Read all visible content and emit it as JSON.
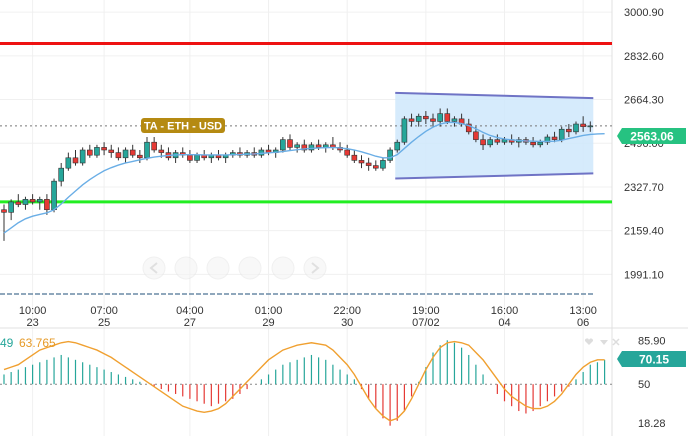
{
  "chart_data": [
    {
      "type": "candlestick",
      "title": "TA - ETH - USD",
      "y_ticks": [
        3000.9,
        2832.6,
        2664.3,
        2496.0,
        2327.7,
        2159.4,
        1991.1
      ],
      "y_tick_labels": [
        "3000.90",
        "2832.60",
        "2664.30",
        "2496.00",
        "2327.70",
        "2159.40",
        "1991.10"
      ],
      "ylim": [
        1900,
        3040
      ],
      "current_price_label": "2563.06",
      "current_price": 2563.06,
      "resistance_level": 2880,
      "support_level": 2270,
      "channel": {
        "start_index": 55,
        "end_index": 82,
        "upper": [
          2690,
          2670
        ],
        "lower": [
          2360,
          2380
        ]
      },
      "x_ticks": [
        {
          "index": 4,
          "time": "10:00",
          "date": "23"
        },
        {
          "index": 14,
          "time": "07:00",
          "date": "25"
        },
        {
          "index": 26,
          "time": "04:00",
          "date": "27"
        },
        {
          "index": 37,
          "time": "01:00",
          "date": "29"
        },
        {
          "index": 48,
          "time": "22:00",
          "date": "30"
        },
        {
          "index": 59,
          "time": "19:00",
          "date": "07/02"
        },
        {
          "index": 70,
          "time": "16:00",
          "date": "04"
        },
        {
          "index": 81,
          "time": "13:00",
          "date": "06"
        }
      ],
      "candles": [
        {
          "o": 2240,
          "h": 2260,
          "l": 2120,
          "c": 2230
        },
        {
          "o": 2230,
          "h": 2280,
          "l": 2200,
          "c": 2270
        },
        {
          "o": 2270,
          "h": 2300,
          "l": 2250,
          "c": 2260
        },
        {
          "o": 2260,
          "h": 2290,
          "l": 2240,
          "c": 2280
        },
        {
          "o": 2280,
          "h": 2300,
          "l": 2260,
          "c": 2270
        },
        {
          "o": 2270,
          "h": 2290,
          "l": 2240,
          "c": 2280
        },
        {
          "o": 2280,
          "h": 2300,
          "l": 2220,
          "c": 2240
        },
        {
          "o": 2240,
          "h": 2360,
          "l": 2230,
          "c": 2350
        },
        {
          "o": 2350,
          "h": 2420,
          "l": 2330,
          "c": 2400
        },
        {
          "o": 2400,
          "h": 2460,
          "l": 2390,
          "c": 2440
        },
        {
          "o": 2440,
          "h": 2470,
          "l": 2410,
          "c": 2420
        },
        {
          "o": 2420,
          "h": 2480,
          "l": 2410,
          "c": 2470
        },
        {
          "o": 2470,
          "h": 2490,
          "l": 2440,
          "c": 2450
        },
        {
          "o": 2450,
          "h": 2490,
          "l": 2440,
          "c": 2480
        },
        {
          "o": 2480,
          "h": 2500,
          "l": 2450,
          "c": 2470
        },
        {
          "o": 2470,
          "h": 2490,
          "l": 2440,
          "c": 2460
        },
        {
          "o": 2460,
          "h": 2480,
          "l": 2430,
          "c": 2440
        },
        {
          "o": 2440,
          "h": 2480,
          "l": 2420,
          "c": 2470
        },
        {
          "o": 2470,
          "h": 2490,
          "l": 2440,
          "c": 2450
        },
        {
          "o": 2450,
          "h": 2470,
          "l": 2420,
          "c": 2440
        },
        {
          "o": 2440,
          "h": 2520,
          "l": 2430,
          "c": 2500
        },
        {
          "o": 2500,
          "h": 2520,
          "l": 2460,
          "c": 2470
        },
        {
          "o": 2470,
          "h": 2490,
          "l": 2440,
          "c": 2460
        },
        {
          "o": 2460,
          "h": 2480,
          "l": 2430,
          "c": 2440
        },
        {
          "o": 2440,
          "h": 2470,
          "l": 2420,
          "c": 2460
        },
        {
          "o": 2460,
          "h": 2480,
          "l": 2440,
          "c": 2450
        },
        {
          "o": 2450,
          "h": 2470,
          "l": 2420,
          "c": 2430
        },
        {
          "o": 2430,
          "h": 2460,
          "l": 2420,
          "c": 2450
        },
        {
          "o": 2450,
          "h": 2470,
          "l": 2430,
          "c": 2440
        },
        {
          "o": 2440,
          "h": 2460,
          "l": 2420,
          "c": 2450
        },
        {
          "o": 2450,
          "h": 2470,
          "l": 2430,
          "c": 2440
        },
        {
          "o": 2440,
          "h": 2460,
          "l": 2420,
          "c": 2450
        },
        {
          "o": 2450,
          "h": 2470,
          "l": 2440,
          "c": 2460
        },
        {
          "o": 2460,
          "h": 2480,
          "l": 2440,
          "c": 2450
        },
        {
          "o": 2450,
          "h": 2470,
          "l": 2440,
          "c": 2460
        },
        {
          "o": 2460,
          "h": 2480,
          "l": 2440,
          "c": 2450
        },
        {
          "o": 2450,
          "h": 2480,
          "l": 2440,
          "c": 2470
        },
        {
          "o": 2470,
          "h": 2490,
          "l": 2450,
          "c": 2460
        },
        {
          "o": 2460,
          "h": 2480,
          "l": 2440,
          "c": 2470
        },
        {
          "o": 2470,
          "h": 2520,
          "l": 2460,
          "c": 2510
        },
        {
          "o": 2510,
          "h": 2530,
          "l": 2470,
          "c": 2480
        },
        {
          "o": 2480,
          "h": 2500,
          "l": 2460,
          "c": 2490
        },
        {
          "o": 2490,
          "h": 2510,
          "l": 2460,
          "c": 2470
        },
        {
          "o": 2470,
          "h": 2500,
          "l": 2460,
          "c": 2490
        },
        {
          "o": 2490,
          "h": 2510,
          "l": 2470,
          "c": 2480
        },
        {
          "o": 2480,
          "h": 2500,
          "l": 2460,
          "c": 2490
        },
        {
          "o": 2490,
          "h": 2520,
          "l": 2470,
          "c": 2480
        },
        {
          "o": 2480,
          "h": 2500,
          "l": 2460,
          "c": 2470
        },
        {
          "o": 2470,
          "h": 2490,
          "l": 2440,
          "c": 2450
        },
        {
          "o": 2450,
          "h": 2470,
          "l": 2420,
          "c": 2430
        },
        {
          "o": 2430,
          "h": 2450,
          "l": 2400,
          "c": 2420
        },
        {
          "o": 2420,
          "h": 2440,
          "l": 2390,
          "c": 2410
        },
        {
          "o": 2410,
          "h": 2430,
          "l": 2390,
          "c": 2400
        },
        {
          "o": 2400,
          "h": 2440,
          "l": 2390,
          "c": 2430
        },
        {
          "o": 2430,
          "h": 2480,
          "l": 2420,
          "c": 2470
        },
        {
          "o": 2470,
          "h": 2510,
          "l": 2460,
          "c": 2500
        },
        {
          "o": 2500,
          "h": 2600,
          "l": 2490,
          "c": 2590
        },
        {
          "o": 2590,
          "h": 2610,
          "l": 2560,
          "c": 2580
        },
        {
          "o": 2580,
          "h": 2610,
          "l": 2560,
          "c": 2600
        },
        {
          "o": 2600,
          "h": 2620,
          "l": 2570,
          "c": 2590
        },
        {
          "o": 2590,
          "h": 2610,
          "l": 2560,
          "c": 2580
        },
        {
          "o": 2580,
          "h": 2630,
          "l": 2560,
          "c": 2610
        },
        {
          "o": 2610,
          "h": 2630,
          "l": 2570,
          "c": 2580
        },
        {
          "o": 2580,
          "h": 2600,
          "l": 2560,
          "c": 2590
        },
        {
          "o": 2590,
          "h": 2610,
          "l": 2560,
          "c": 2570
        },
        {
          "o": 2570,
          "h": 2590,
          "l": 2530,
          "c": 2540
        },
        {
          "o": 2540,
          "h": 2560,
          "l": 2500,
          "c": 2510
        },
        {
          "o": 2510,
          "h": 2530,
          "l": 2470,
          "c": 2490
        },
        {
          "o": 2490,
          "h": 2520,
          "l": 2480,
          "c": 2510
        },
        {
          "o": 2510,
          "h": 2530,
          "l": 2490,
          "c": 2500
        },
        {
          "o": 2500,
          "h": 2520,
          "l": 2490,
          "c": 2510
        },
        {
          "o": 2510,
          "h": 2530,
          "l": 2490,
          "c": 2500
        },
        {
          "o": 2500,
          "h": 2520,
          "l": 2480,
          "c": 2510
        },
        {
          "o": 2510,
          "h": 2520,
          "l": 2490,
          "c": 2500
        },
        {
          "o": 2500,
          "h": 2520,
          "l": 2480,
          "c": 2490
        },
        {
          "o": 2490,
          "h": 2510,
          "l": 2480,
          "c": 2500
        },
        {
          "o": 2500,
          "h": 2530,
          "l": 2490,
          "c": 2520
        },
        {
          "o": 2520,
          "h": 2540,
          "l": 2500,
          "c": 2510
        },
        {
          "o": 2510,
          "h": 2560,
          "l": 2500,
          "c": 2550
        },
        {
          "o": 2550,
          "h": 2570,
          "l": 2520,
          "c": 2540
        },
        {
          "o": 2540,
          "h": 2580,
          "l": 2530,
          "c": 2570
        },
        {
          "o": 2570,
          "h": 2600,
          "l": 2540,
          "c": 2560
        },
        {
          "o": 2560,
          "h": 2580,
          "l": 2540,
          "c": 2563
        }
      ],
      "ma": [
        2150,
        2170,
        2190,
        2205,
        2215,
        2222,
        2228,
        2240,
        2262,
        2288,
        2312,
        2336,
        2356,
        2374,
        2390,
        2402,
        2412,
        2420,
        2426,
        2432,
        2438,
        2443,
        2446,
        2449,
        2451,
        2452,
        2452,
        2452,
        2451,
        2451,
        2451,
        2451,
        2452,
        2453,
        2454,
        2455,
        2457,
        2459,
        2461,
        2464,
        2468,
        2471,
        2474,
        2476,
        2478,
        2479,
        2480,
        2478,
        2475,
        2470,
        2463,
        2455,
        2446,
        2440,
        2440,
        2452,
        2476,
        2500,
        2522,
        2542,
        2558,
        2570,
        2576,
        2576,
        2572,
        2564,
        2552,
        2538,
        2526,
        2518,
        2512,
        2509,
        2507,
        2505,
        2504,
        2503,
        2503,
        2504,
        2508,
        2514,
        2520,
        2526,
        2530,
        2532,
        2533
      ]
    },
    {
      "type": "bar",
      "indicator_value_label": "63.765",
      "indicator_partial_label": "49",
      "current_value_label": "70.15",
      "y_tick_labels": [
        "85.90",
        "50",
        "18.28"
      ],
      "y_ticks": [
        85.9,
        50,
        18.28
      ],
      "ylim": [
        10,
        92
      ],
      "baseline": 50,
      "histogram": [
        8,
        10,
        12,
        14,
        16,
        18,
        20,
        22,
        24,
        22,
        20,
        18,
        16,
        14,
        12,
        10,
        8,
        6,
        4,
        2,
        0,
        -2,
        -4,
        -6,
        -8,
        -10,
        -12,
        -14,
        -16,
        -18,
        -16,
        -14,
        -12,
        -8,
        -4,
        0,
        4,
        8,
        12,
        16,
        18,
        20,
        22,
        24,
        22,
        20,
        16,
        12,
        8,
        4,
        -4,
        -12,
        -20,
        -28,
        -34,
        -30,
        -22,
        -10,
        2,
        14,
        26,
        32,
        36,
        34,
        30,
        24,
        16,
        8,
        0,
        -8,
        -14,
        -18,
        -22,
        -24,
        -22,
        -18,
        -14,
        -10,
        -6,
        -2,
        4,
        10,
        16,
        18,
        20
      ],
      "line": [
        62,
        64,
        66,
        70,
        74,
        78,
        80,
        82,
        84,
        85,
        84,
        82,
        80,
        78,
        75,
        72,
        68,
        64,
        60,
        56,
        52,
        48,
        44,
        40,
        36,
        32,
        30,
        28,
        27,
        28,
        30,
        34,
        40,
        46,
        52,
        58,
        64,
        70,
        74,
        78,
        80,
        82,
        83,
        84,
        83,
        82,
        78,
        72,
        66,
        58,
        48,
        38,
        30,
        24,
        20,
        22,
        28,
        38,
        50,
        62,
        72,
        80,
        84,
        85,
        84,
        82,
        76,
        70,
        62,
        54,
        46,
        40,
        36,
        32,
        30,
        30,
        32,
        36,
        42,
        50,
        58,
        64,
        68,
        70,
        70
      ]
    }
  ]
}
